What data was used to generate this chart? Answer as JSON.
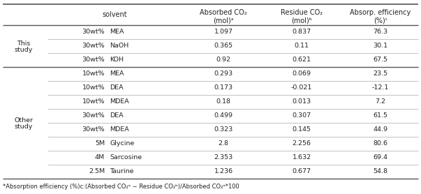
{
  "this_study_rows": [
    [
      "30wt%",
      "MEA",
      "1.097",
      "0.837",
      "76.3"
    ],
    [
      "30wt%",
      "NaOH",
      "0.365",
      "0.11",
      "30.1"
    ],
    [
      "30wt%",
      "KOH",
      "0.92",
      "0.621",
      "67.5"
    ]
  ],
  "other_study_rows": [
    [
      "10wt%",
      "MEA",
      "0.293",
      "0.069",
      "23.5"
    ],
    [
      "10wt%",
      "DEA",
      "0.173",
      "-0.021",
      "-12.1"
    ],
    [
      "10wt%",
      "MDEA",
      "0.18",
      "0.013",
      "7.2"
    ],
    [
      "30wt%",
      "DEA",
      "0.499",
      "0.307",
      "61.5"
    ],
    [
      "30wt%",
      "MDEA",
      "0.323",
      "0.145",
      "44.9"
    ],
    [
      "5M",
      "Glycine",
      "2.8",
      "2.256",
      "80.6"
    ],
    [
      "4M",
      "Sarcosine",
      "2.353",
      "1.632",
      "69.4"
    ],
    [
      "2.5M",
      "Taurine",
      "1.236",
      "0.677",
      "54.8"
    ]
  ],
  "footnote": "*Absorption efficiency (%)c:(Absorbed CO₂ᵃ − Residue CO₂ᵇ)/Absorbed CO₂ᵃ*100",
  "bg_color": "#ffffff",
  "line_color_thin": "#aaaaaa",
  "line_color_thick": "#555555",
  "text_color": "#222222",
  "fs_header": 7.0,
  "fs_data": 6.8,
  "fs_note": 6.0
}
